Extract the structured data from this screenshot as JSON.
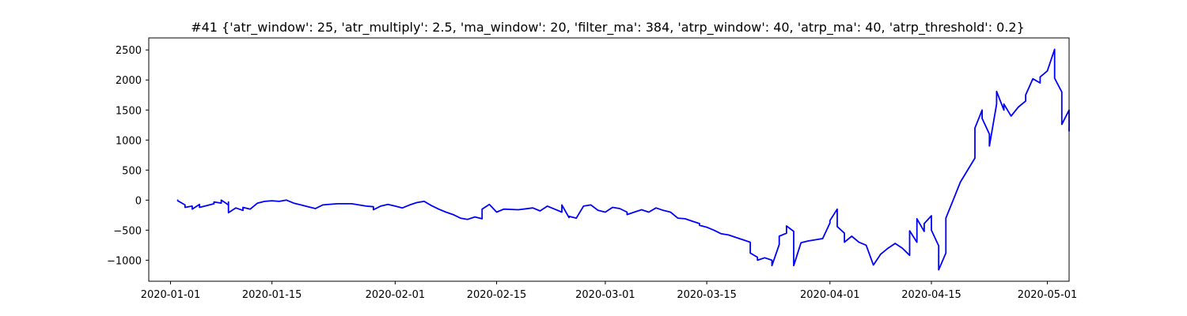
{
  "chart_data": {
    "type": "line",
    "title": "#41 {'atr_window': 25, 'atr_multiply': 2.5, 'ma_window': 20, 'filter_ma': 384, 'atrp_window': 40, 'atrp_ma': 40, 'atrp_threshold': 0.2}",
    "xlabel": "",
    "ylabel": "",
    "x_type": "date",
    "xlim": [
      "2019-12-29",
      "2020-05-04"
    ],
    "ylim": [
      -1350,
      2700
    ],
    "grid": false,
    "legend": null,
    "color": "#0000ff",
    "x_ticks": [
      "2020-01-01",
      "2020-01-15",
      "2020-02-01",
      "2020-02-15",
      "2020-03-01",
      "2020-03-15",
      "2020-04-01",
      "2020-04-15",
      "2020-05-01"
    ],
    "y_ticks": [
      -1000,
      -500,
      0,
      500,
      1000,
      1500,
      2000,
      2500
    ],
    "series": [
      {
        "points": [
          [
            "2020-01-02",
            0
          ],
          [
            "2020-01-02",
            -10
          ],
          [
            "2020-01-03",
            -80
          ],
          [
            "2020-01-03",
            -120
          ],
          [
            "2020-01-04",
            -100
          ],
          [
            "2020-01-04",
            -150
          ],
          [
            "2020-01-05",
            -70
          ],
          [
            "2020-01-05",
            -120
          ],
          [
            "2020-01-06",
            -90
          ],
          [
            "2020-01-07",
            -60
          ],
          [
            "2020-01-07",
            -30
          ],
          [
            "2020-01-08",
            -50
          ],
          [
            "2020-01-08",
            0
          ],
          [
            "2020-01-09",
            -80
          ],
          [
            "2020-01-09",
            -30
          ],
          [
            "2020-01-09",
            -210
          ],
          [
            "2020-01-10",
            -130
          ],
          [
            "2020-01-11",
            -170
          ],
          [
            "2020-01-11",
            -120
          ],
          [
            "2020-01-12",
            -150
          ],
          [
            "2020-01-13",
            -50
          ],
          [
            "2020-01-14",
            -20
          ],
          [
            "2020-01-15",
            -10
          ],
          [
            "2020-01-16",
            -20
          ],
          [
            "2020-01-17",
            0
          ],
          [
            "2020-01-18",
            -50
          ],
          [
            "2020-01-19",
            -80
          ],
          [
            "2020-01-20",
            -110
          ],
          [
            "2020-01-21",
            -140
          ],
          [
            "2020-01-22",
            -80
          ],
          [
            "2020-01-24",
            -60
          ],
          [
            "2020-01-26",
            -60
          ],
          [
            "2020-01-27",
            -80
          ],
          [
            "2020-01-28",
            -100
          ],
          [
            "2020-01-29",
            -110
          ],
          [
            "2020-01-29",
            -160
          ],
          [
            "2020-01-30",
            -100
          ],
          [
            "2020-01-31",
            -70
          ],
          [
            "2020-02-01",
            -100
          ],
          [
            "2020-02-02",
            -130
          ],
          [
            "2020-02-03",
            -80
          ],
          [
            "2020-02-04",
            -40
          ],
          [
            "2020-02-05",
            -20
          ],
          [
            "2020-02-06",
            -90
          ],
          [
            "2020-02-07",
            -150
          ],
          [
            "2020-02-08",
            -200
          ],
          [
            "2020-02-09",
            -240
          ],
          [
            "2020-02-10",
            -300
          ],
          [
            "2020-02-11",
            -320
          ],
          [
            "2020-02-12",
            -280
          ],
          [
            "2020-02-13",
            -310
          ],
          [
            "2020-02-13",
            -150
          ],
          [
            "2020-02-14",
            -70
          ],
          [
            "2020-02-15",
            -200
          ],
          [
            "2020-02-16",
            -150
          ],
          [
            "2020-02-18",
            -160
          ],
          [
            "2020-02-20",
            -130
          ],
          [
            "2020-02-21",
            -180
          ],
          [
            "2020-02-22",
            -100
          ],
          [
            "2020-02-23",
            -150
          ],
          [
            "2020-02-24",
            -200
          ],
          [
            "2020-02-24",
            -80
          ],
          [
            "2020-02-25",
            -290
          ],
          [
            "2020-02-25",
            -270
          ],
          [
            "2020-02-26",
            -300
          ],
          [
            "2020-02-27",
            -100
          ],
          [
            "2020-02-28",
            -80
          ],
          [
            "2020-02-29",
            -170
          ],
          [
            "2020-03-01",
            -200
          ],
          [
            "2020-03-02",
            -120
          ],
          [
            "2020-03-03",
            -140
          ],
          [
            "2020-03-04",
            -200
          ],
          [
            "2020-03-04",
            -240
          ],
          [
            "2020-03-05",
            -200
          ],
          [
            "2020-03-06",
            -160
          ],
          [
            "2020-03-07",
            -200
          ],
          [
            "2020-03-08",
            -130
          ],
          [
            "2020-03-09",
            -170
          ],
          [
            "2020-03-10",
            -200
          ],
          [
            "2020-03-11",
            -300
          ],
          [
            "2020-03-12",
            -310
          ],
          [
            "2020-03-13",
            -350
          ],
          [
            "2020-03-14",
            -390
          ],
          [
            "2020-03-14",
            -420
          ],
          [
            "2020-03-15",
            -450
          ],
          [
            "2020-03-16",
            -500
          ],
          [
            "2020-03-17",
            -560
          ],
          [
            "2020-03-18",
            -580
          ],
          [
            "2020-03-19",
            -620
          ],
          [
            "2020-03-20",
            -660
          ],
          [
            "2020-03-21",
            -700
          ],
          [
            "2020-03-21",
            -880
          ],
          [
            "2020-03-22",
            -950
          ],
          [
            "2020-03-22",
            -1000
          ],
          [
            "2020-03-23",
            -960
          ],
          [
            "2020-03-24",
            -1000
          ],
          [
            "2020-03-24",
            -1090
          ],
          [
            "2020-03-25",
            -740
          ],
          [
            "2020-03-25",
            -600
          ],
          [
            "2020-03-26",
            -550
          ],
          [
            "2020-03-26",
            -430
          ],
          [
            "2020-03-27",
            -520
          ],
          [
            "2020-03-27",
            -1090
          ],
          [
            "2020-03-28",
            -710
          ],
          [
            "2020-03-29",
            -680
          ],
          [
            "2020-03-30",
            -660
          ],
          [
            "2020-03-31",
            -640
          ],
          [
            "2020-04-01",
            -380
          ],
          [
            "2020-04-01",
            -340
          ],
          [
            "2020-04-02",
            -150
          ],
          [
            "2020-04-02",
            -440
          ],
          [
            "2020-04-03",
            -550
          ],
          [
            "2020-04-03",
            -700
          ],
          [
            "2020-04-04",
            -600
          ],
          [
            "2020-04-05",
            -700
          ],
          [
            "2020-04-06",
            -750
          ],
          [
            "2020-04-07",
            -1080
          ],
          [
            "2020-04-08",
            -900
          ],
          [
            "2020-04-09",
            -800
          ],
          [
            "2020-04-10",
            -720
          ],
          [
            "2020-04-11",
            -800
          ],
          [
            "2020-04-12",
            -920
          ],
          [
            "2020-04-12",
            -510
          ],
          [
            "2020-04-13",
            -700
          ],
          [
            "2020-04-13",
            -310
          ],
          [
            "2020-04-14",
            -520
          ],
          [
            "2020-04-14",
            -390
          ],
          [
            "2020-04-15",
            -260
          ],
          [
            "2020-04-15",
            -500
          ],
          [
            "2020-04-16",
            -760
          ],
          [
            "2020-04-16",
            -1160
          ],
          [
            "2020-04-17",
            -880
          ],
          [
            "2020-04-17",
            -300
          ],
          [
            "2020-04-18",
            0
          ],
          [
            "2020-04-19",
            300
          ],
          [
            "2020-04-21",
            700
          ],
          [
            "2020-04-21",
            1200
          ],
          [
            "2020-04-22",
            1500
          ],
          [
            "2020-04-22",
            1360
          ],
          [
            "2020-04-23",
            1100
          ],
          [
            "2020-04-23",
            900
          ],
          [
            "2020-04-24",
            1600
          ],
          [
            "2020-04-24",
            1810
          ],
          [
            "2020-04-25",
            1500
          ],
          [
            "2020-04-25",
            1600
          ],
          [
            "2020-04-26",
            1400
          ],
          [
            "2020-04-27",
            1550
          ],
          [
            "2020-04-28",
            1650
          ],
          [
            "2020-04-28",
            1750
          ],
          [
            "2020-04-29",
            2020
          ],
          [
            "2020-04-30",
            1950
          ],
          [
            "2020-04-30",
            2050
          ],
          [
            "2020-05-01",
            2150
          ],
          [
            "2020-05-02",
            2510
          ],
          [
            "2020-05-02",
            2030
          ],
          [
            "2020-05-03",
            1800
          ],
          [
            "2020-05-03",
            1260
          ],
          [
            "2020-05-04",
            1500
          ],
          [
            "2020-05-04",
            1270
          ],
          [
            "2020-05-04",
            1150
          ]
        ]
      }
    ]
  }
}
